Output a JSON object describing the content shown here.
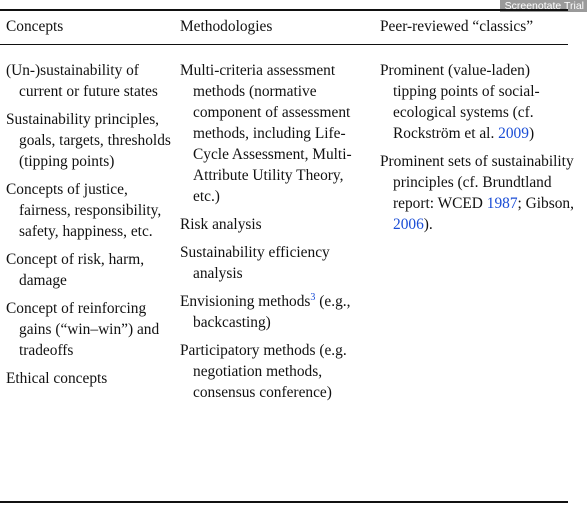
{
  "watermark": "Screenotate Trial",
  "headers": {
    "concepts": "Concepts",
    "methodologies": "Methodologies",
    "classics": "Peer-reviewed “classics”"
  },
  "concepts": [
    "(Un-)sustainability of current or future states",
    "Sustainability principles, goals, targets, thresholds (tipping points)",
    "Concepts of justice, fairness, responsibility, safety, happiness, etc.",
    "Concept of risk, harm, damage",
    "Concept of reinforcing gains (“win–win”) and tradeoffs",
    "Ethical concepts"
  ],
  "methodologies": {
    "mcda": "Multi-criteria assessment methods (normative component of assessment methods, including Life-Cycle Assessment, Multi-Attribute Utility Theory, etc.)",
    "risk": "Risk analysis",
    "efficiency": "Sustainability efficiency analysis",
    "envisioning": "Envisioning methods",
    "envisioning_footnote": "3",
    "envisioning_example": "(e.g., backcasting)",
    "participatory": "Participatory methods (e.g. negotiation methods, consensus conference)"
  },
  "classics": {
    "item1_text": "Prominent (value-laden) tipping points of social-ecological systems (cf. Rockström et al. ",
    "item1_year": "2009",
    "item1_end": ")",
    "item2_text": "Prominent sets of sustainability principles (cf. Brundtland report: WCED ",
    "item2_year1": "1987",
    "item2_mid": "; Gibson, ",
    "item2_year2": "2006",
    "item2_end": ")."
  },
  "colors": {
    "citation_link": "#1a4dd6",
    "text": "#111111",
    "watermark_bg": "#9a9a9a"
  }
}
